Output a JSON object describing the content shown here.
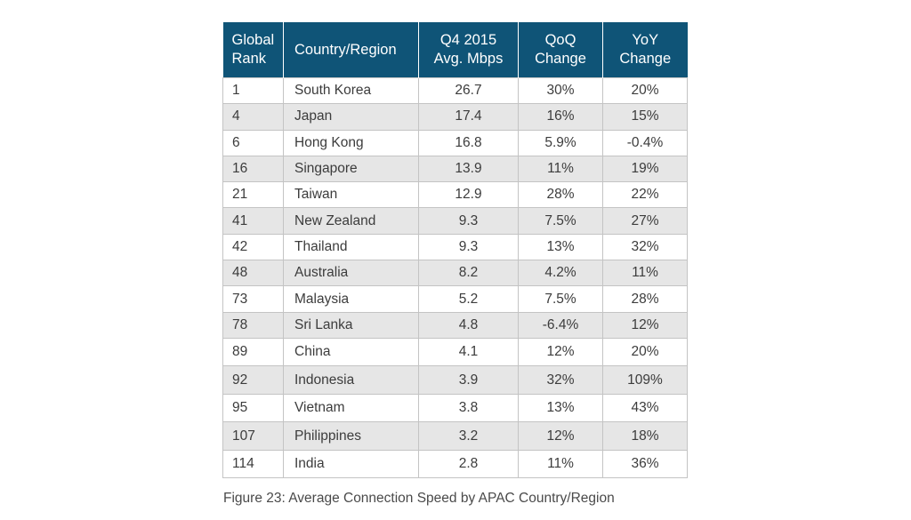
{
  "table": {
    "headers": [
      "Global\nRank",
      "Country/Region",
      "Q4 2015\nAvg. Mbps",
      "QoQ\nChange",
      "YoY\nChange"
    ],
    "rows": [
      [
        "1",
        "South Korea",
        "26.7",
        "30%",
        "20%"
      ],
      [
        "4",
        "Japan",
        "17.4",
        "16%",
        "15%"
      ],
      [
        "6",
        "Hong Kong",
        "16.8",
        "5.9%",
        "-0.4%"
      ],
      [
        "16",
        "Singapore",
        "13.9",
        "11%",
        "19%"
      ],
      [
        "21",
        "Taiwan",
        "12.9",
        "28%",
        "22%"
      ],
      [
        "41",
        "New Zealand",
        "9.3",
        "7.5%",
        "27%"
      ],
      [
        "42",
        "Thailand",
        "9.3",
        "13%",
        "32%"
      ],
      [
        "48",
        "Australia",
        "8.2",
        "4.2%",
        "11%"
      ],
      [
        "73",
        "Malaysia",
        "5.2",
        "7.5%",
        "28%"
      ],
      [
        "78",
        "Sri Lanka",
        "4.8",
        "-6.4%",
        "12%"
      ],
      [
        "89",
        "China",
        "4.1",
        "12%",
        "20%"
      ],
      [
        "92",
        "Indonesia",
        "3.9",
        "32%",
        "109%"
      ],
      [
        "95",
        "Vietnam",
        "3.8",
        "13%",
        "43%"
      ],
      [
        "107",
        "Philippines",
        "3.2",
        "12%",
        "18%"
      ],
      [
        "114",
        "India",
        "2.8",
        "11%",
        "36%"
      ]
    ]
  },
  "caption": "Figure 23: Average Connection Speed by APAC Country/Region",
  "colors": {
    "header_bg": "#0f5477",
    "header_text": "#ffffff",
    "stripe_bg": "#e6e6e6",
    "border": "#c4c4c4"
  }
}
